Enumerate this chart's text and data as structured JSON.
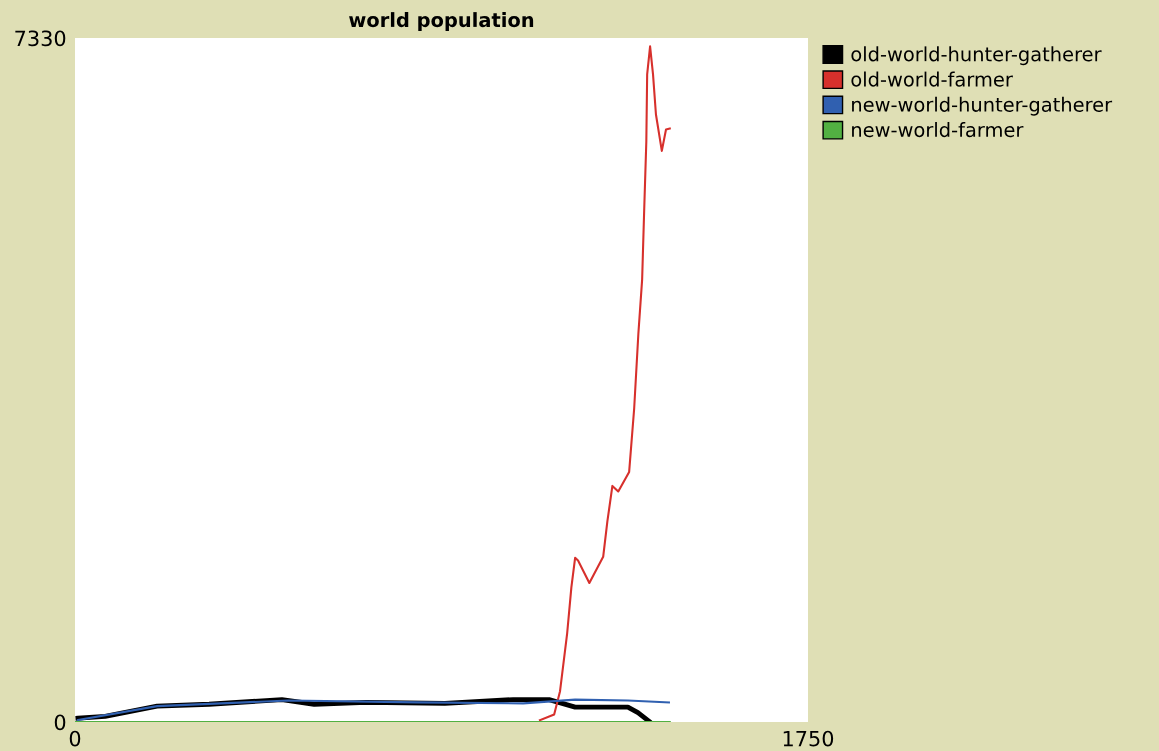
{
  "chart_data": {
    "type": "line",
    "title": "world population",
    "xlim": [
      0,
      1750
    ],
    "ylim": [
      0,
      7330
    ],
    "xticks": [
      0,
      1750
    ],
    "yticks": [
      0,
      7330
    ],
    "grid": false,
    "legend": "right",
    "series": [
      {
        "name": "old-world-hunter-gatherer",
        "color": "#000000",
        "x": [
          7,
          72,
          196,
          320,
          494,
          571,
          695,
          883,
          1046,
          1132,
          1194,
          1320,
          1344,
          1370
        ],
        "values": [
          40,
          60,
          170,
          190,
          240,
          190,
          210,
          200,
          240,
          240,
          160,
          160,
          100,
          10
        ]
      },
      {
        "name": "old-world-farmer",
        "color": "#d7302c",
        "x": [
          1110,
          1144,
          1158,
          1175,
          1185,
          1194,
          1201,
          1228,
          1261,
          1271,
          1283,
          1297,
          1323,
          1335,
          1345,
          1354,
          1359,
          1364,
          1366,
          1373,
          1380,
          1387,
          1401,
          1411,
          1420
        ],
        "values": [
          20,
          80,
          330,
          950,
          1440,
          1760,
          1730,
          1490,
          1770,
          2150,
          2530,
          2470,
          2680,
          3360,
          4160,
          4740,
          5500,
          6220,
          6940,
          7240,
          6940,
          6510,
          6120,
          6350,
          6360
        ]
      },
      {
        "name": "new-world-hunter-gatherer",
        "color": "#3060b0",
        "x": [
          7,
          196,
          509,
          819,
          1070,
          1194,
          1320,
          1418
        ],
        "values": [
          20,
          170,
          230,
          210,
          200,
          240,
          230,
          210
        ]
      },
      {
        "name": "new-world-farmer",
        "color": "#52b042",
        "x": [
          0,
          1420
        ],
        "values": [
          0,
          0
        ]
      }
    ]
  }
}
